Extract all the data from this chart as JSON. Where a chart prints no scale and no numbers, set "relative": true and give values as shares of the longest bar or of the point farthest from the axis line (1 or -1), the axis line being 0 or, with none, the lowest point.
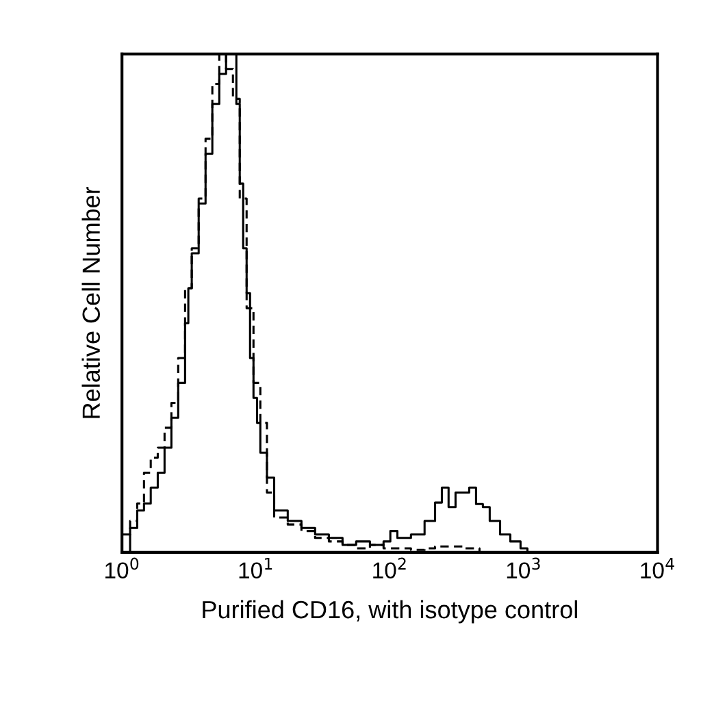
{
  "chart_data": {
    "type": "step",
    "relative": true,
    "log": "x",
    "xlabel": "Purified CD16, with isotype control",
    "ylabel": "Relative Cell Number",
    "xlim": [
      1,
      10000
    ],
    "xticks": [
      {
        "value": 1,
        "label": "10$^{0}$"
      },
      {
        "value": 10,
        "label": "10$^{1}$"
      },
      {
        "value": 100,
        "label": "10$^{2}$"
      },
      {
        "value": 1000,
        "label": "10$^{3}$"
      },
      {
        "value": 10000,
        "label": "10$^{4}$"
      }
    ],
    "grid": false,
    "legend": false,
    "series": [
      {
        "color": "#000000",
        "line_style": "solid",
        "x": [
          1.0,
          1.15,
          1.3,
          1.46,
          1.64,
          1.85,
          2.08,
          2.34,
          2.63,
          2.96,
          3.13,
          3.32,
          3.74,
          4.21,
          4.73,
          5.33,
          5.99,
          6.58,
          7.15,
          7.58,
          8.04,
          8.53,
          9.05,
          9.6,
          10.2,
          10.8,
          12.1,
          13.7,
          17.3,
          21.9,
          27.7,
          35.1,
          44.4,
          56.1,
          71.1,
          89.9,
          101,
          114,
          144,
          182,
          218,
          245,
          275,
          310,
          349,
          392,
          441,
          496,
          558,
          667,
          795,
          948,
          1067,
          10000
        ],
        "values": [
          0,
          0.049,
          0.084,
          0.098,
          0.13,
          0.16,
          0.21,
          0.27,
          0.34,
          0.46,
          0.53,
          0.6,
          0.7,
          0.8,
          0.9,
          0.96,
          1.0,
          1.0,
          0.9,
          0.74,
          0.61,
          0.52,
          0.39,
          0.31,
          0.26,
          0.2,
          0.15,
          0.084,
          0.063,
          0.049,
          0.036,
          0.029,
          0.015,
          0.022,
          0.015,
          0.022,
          0.043,
          0.029,
          0.036,
          0.063,
          0.1,
          0.13,
          0.091,
          0.12,
          0.12,
          0.13,
          0.097,
          0.091,
          0.063,
          0.036,
          0.022,
          0.008,
          0,
          0
        ]
      },
      {
        "color": "#000000",
        "line_style": "dashed",
        "x": [
          1.0,
          1.15,
          1.3,
          1.46,
          1.64,
          1.85,
          2.08,
          2.34,
          2.63,
          2.96,
          3.32,
          3.74,
          4.21,
          4.73,
          5.33,
          5.99,
          6.74,
          7.58,
          8.53,
          9.6,
          10.8,
          12.1,
          13.7,
          17.3,
          21.9,
          27.7,
          35.1,
          44.4,
          56.1,
          71.1,
          89.9,
          114,
          144,
          182,
          218,
          275,
          349,
          468,
          10000
        ],
        "values": [
          0.036,
          0.063,
          0.098,
          0.16,
          0.19,
          0.21,
          0.25,
          0.3,
          0.39,
          0.53,
          0.61,
          0.71,
          0.83,
          0.94,
          1.0,
          0.97,
          0.91,
          0.71,
          0.49,
          0.34,
          0.26,
          0.12,
          0.07,
          0.056,
          0.043,
          0.029,
          0.022,
          0.015,
          0.008,
          0.015,
          0.008,
          0.008,
          0.005,
          0.008,
          0.012,
          0.012,
          0.008,
          0,
          0
        ]
      }
    ]
  }
}
